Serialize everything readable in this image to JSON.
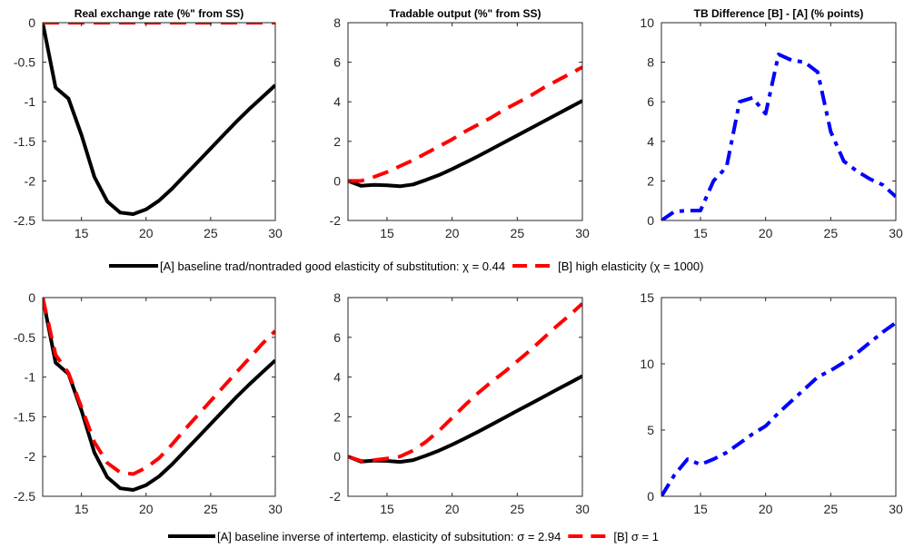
{
  "colors": {
    "A": "#000000",
    "B": "#ff0000",
    "diff": "#0000ff"
  },
  "legends": [
    {
      "A": "[A] baseline trad/nontraded good elasticity of substitution: χ = 0.44",
      "B": "[B] high elasticity (χ = 1000)"
    },
    {
      "A": "[A] baseline inverse of intertemp. elasticity of subsitution: σ = 2.94",
      "B": "[B]  σ = 1"
    }
  ],
  "chart_data": [
    {
      "type": "line",
      "title": "Real exchange rate (%\" from SS)",
      "xlim": [
        12,
        30
      ],
      "ylim": [
        -2.5,
        0
      ],
      "xticks": [
        15,
        20,
        25,
        30
      ],
      "yticks": [
        0,
        -0.5,
        -1,
        -1.5,
        -2,
        -2.5
      ],
      "x": [
        12,
        13,
        14,
        15,
        16,
        17,
        18,
        19,
        20,
        21,
        22,
        23,
        24,
        25,
        26,
        27,
        28,
        29,
        30
      ],
      "series": [
        {
          "name": "[A]",
          "style": "solid",
          "values": [
            0,
            -0.82,
            -0.96,
            -1.42,
            -1.95,
            -2.26,
            -2.4,
            -2.42,
            -2.36,
            -2.25,
            -2.1,
            -1.93,
            -1.76,
            -1.59,
            -1.42,
            -1.25,
            -1.09,
            -0.94,
            -0.79
          ]
        },
        {
          "name": "[B]",
          "style": "dashed",
          "values": [
            0,
            0,
            0,
            0,
            0,
            0,
            0,
            0,
            0,
            0,
            0,
            0,
            0,
            0,
            0,
            0,
            0,
            0,
            0
          ]
        }
      ]
    },
    {
      "type": "line",
      "title": "Tradable output (%\" from SS)",
      "xlim": [
        12,
        30
      ],
      "ylim": [
        -2,
        8
      ],
      "xticks": [
        15,
        20,
        25,
        30
      ],
      "yticks": [
        8,
        6,
        4,
        2,
        0,
        -2
      ],
      "x": [
        12,
        13,
        14,
        15,
        16,
        17,
        18,
        19,
        20,
        21,
        22,
        23,
        24,
        25,
        26,
        27,
        28,
        29,
        30
      ],
      "series": [
        {
          "name": "[A]",
          "style": "solid",
          "values": [
            0,
            -0.25,
            -0.2,
            -0.22,
            -0.27,
            -0.18,
            0.05,
            0.3,
            0.6,
            0.92,
            1.25,
            1.6,
            1.95,
            2.3,
            2.65,
            3,
            3.35,
            3.7,
            4.05
          ]
        },
        {
          "name": "[B]",
          "style": "dashed",
          "values": [
            0,
            0,
            0.2,
            0.45,
            0.75,
            1.05,
            1.4,
            1.75,
            2.1,
            2.5,
            2.85,
            3.2,
            3.6,
            3.95,
            4.3,
            4.7,
            5.05,
            5.4,
            5.75
          ]
        }
      ]
    },
    {
      "type": "line",
      "title": "TB Difference [B] - [A] (% points)",
      "xlim": [
        12,
        30
      ],
      "ylim": [
        0,
        10
      ],
      "xticks": [
        15,
        20,
        25,
        30
      ],
      "yticks": [
        10,
        8,
        6,
        4,
        2,
        0
      ],
      "x": [
        12,
        13,
        14,
        15,
        16,
        17,
        18,
        19,
        20,
        21,
        22,
        23,
        24,
        25,
        26,
        27,
        28,
        29,
        30
      ],
      "series": [
        {
          "name": "[B] - [A]",
          "style": "dashdot",
          "values": [
            0,
            0.45,
            0.5,
            0.5,
            2,
            2.7,
            6,
            6.2,
            5.4,
            8.4,
            8.1,
            8,
            7.5,
            4.5,
            3,
            2.5,
            2.1,
            1.8,
            1.2
          ]
        }
      ]
    },
    {
      "type": "line",
      "title": "",
      "xlim": [
        12,
        30
      ],
      "ylim": [
        -2.5,
        0
      ],
      "xticks": [
        15,
        20,
        25,
        30
      ],
      "yticks": [
        0,
        -0.5,
        -1,
        -1.5,
        -2,
        -2.5
      ],
      "x": [
        12,
        13,
        14,
        15,
        16,
        17,
        18,
        19,
        20,
        21,
        22,
        23,
        24,
        25,
        26,
        27,
        28,
        29,
        30
      ],
      "series": [
        {
          "name": "[A]",
          "style": "solid",
          "values": [
            0,
            -0.82,
            -0.96,
            -1.42,
            -1.95,
            -2.26,
            -2.4,
            -2.42,
            -2.36,
            -2.25,
            -2.1,
            -1.93,
            -1.76,
            -1.59,
            -1.42,
            -1.25,
            -1.09,
            -0.94,
            -0.79
          ]
        },
        {
          "name": "[B]",
          "style": "dashed",
          "values": [
            0,
            -0.72,
            -0.95,
            -1.38,
            -1.82,
            -2.08,
            -2.2,
            -2.22,
            -2.14,
            -2.02,
            -1.85,
            -1.66,
            -1.48,
            -1.3,
            -1.12,
            -0.94,
            -0.76,
            -0.58,
            -0.42
          ]
        }
      ]
    },
    {
      "type": "line",
      "title": "",
      "xlim": [
        12,
        30
      ],
      "ylim": [
        -2,
        8
      ],
      "xticks": [
        15,
        20,
        25,
        30
      ],
      "yticks": [
        8,
        6,
        4,
        2,
        0,
        -2
      ],
      "x": [
        12,
        13,
        14,
        15,
        16,
        17,
        18,
        19,
        20,
        21,
        22,
        23,
        24,
        25,
        26,
        27,
        28,
        29,
        30
      ],
      "series": [
        {
          "name": "[A]",
          "style": "solid",
          "values": [
            0,
            -0.25,
            -0.2,
            -0.22,
            -0.27,
            -0.18,
            0.05,
            0.3,
            0.6,
            0.92,
            1.25,
            1.6,
            1.95,
            2.3,
            2.65,
            3,
            3.35,
            3.7,
            4.05
          ]
        },
        {
          "name": "[B]",
          "style": "dashed",
          "values": [
            0,
            -0.22,
            -0.18,
            -0.1,
            0,
            0.3,
            0.75,
            1.3,
            1.95,
            2.6,
            3.2,
            3.75,
            4.25,
            4.8,
            5.35,
            5.95,
            6.55,
            7.1,
            7.7
          ]
        }
      ]
    },
    {
      "type": "line",
      "title": "",
      "xlim": [
        12,
        30
      ],
      "ylim": [
        0,
        15
      ],
      "xticks": [
        15,
        20,
        25,
        30
      ],
      "yticks": [
        15,
        10,
        5,
        0
      ],
      "x": [
        12,
        13,
        14,
        15,
        16,
        17,
        18,
        19,
        20,
        21,
        22,
        23,
        24,
        25,
        26,
        27,
        28,
        29,
        30
      ],
      "series": [
        {
          "name": "[B] - [A]",
          "style": "dashdot",
          "values": [
            0,
            1.6,
            2.8,
            2.4,
            2.8,
            3.3,
            4,
            4.7,
            5.3,
            6.3,
            7.2,
            8.1,
            9,
            9.5,
            10.1,
            10.8,
            11.6,
            12.4,
            13.1
          ]
        }
      ]
    }
  ]
}
